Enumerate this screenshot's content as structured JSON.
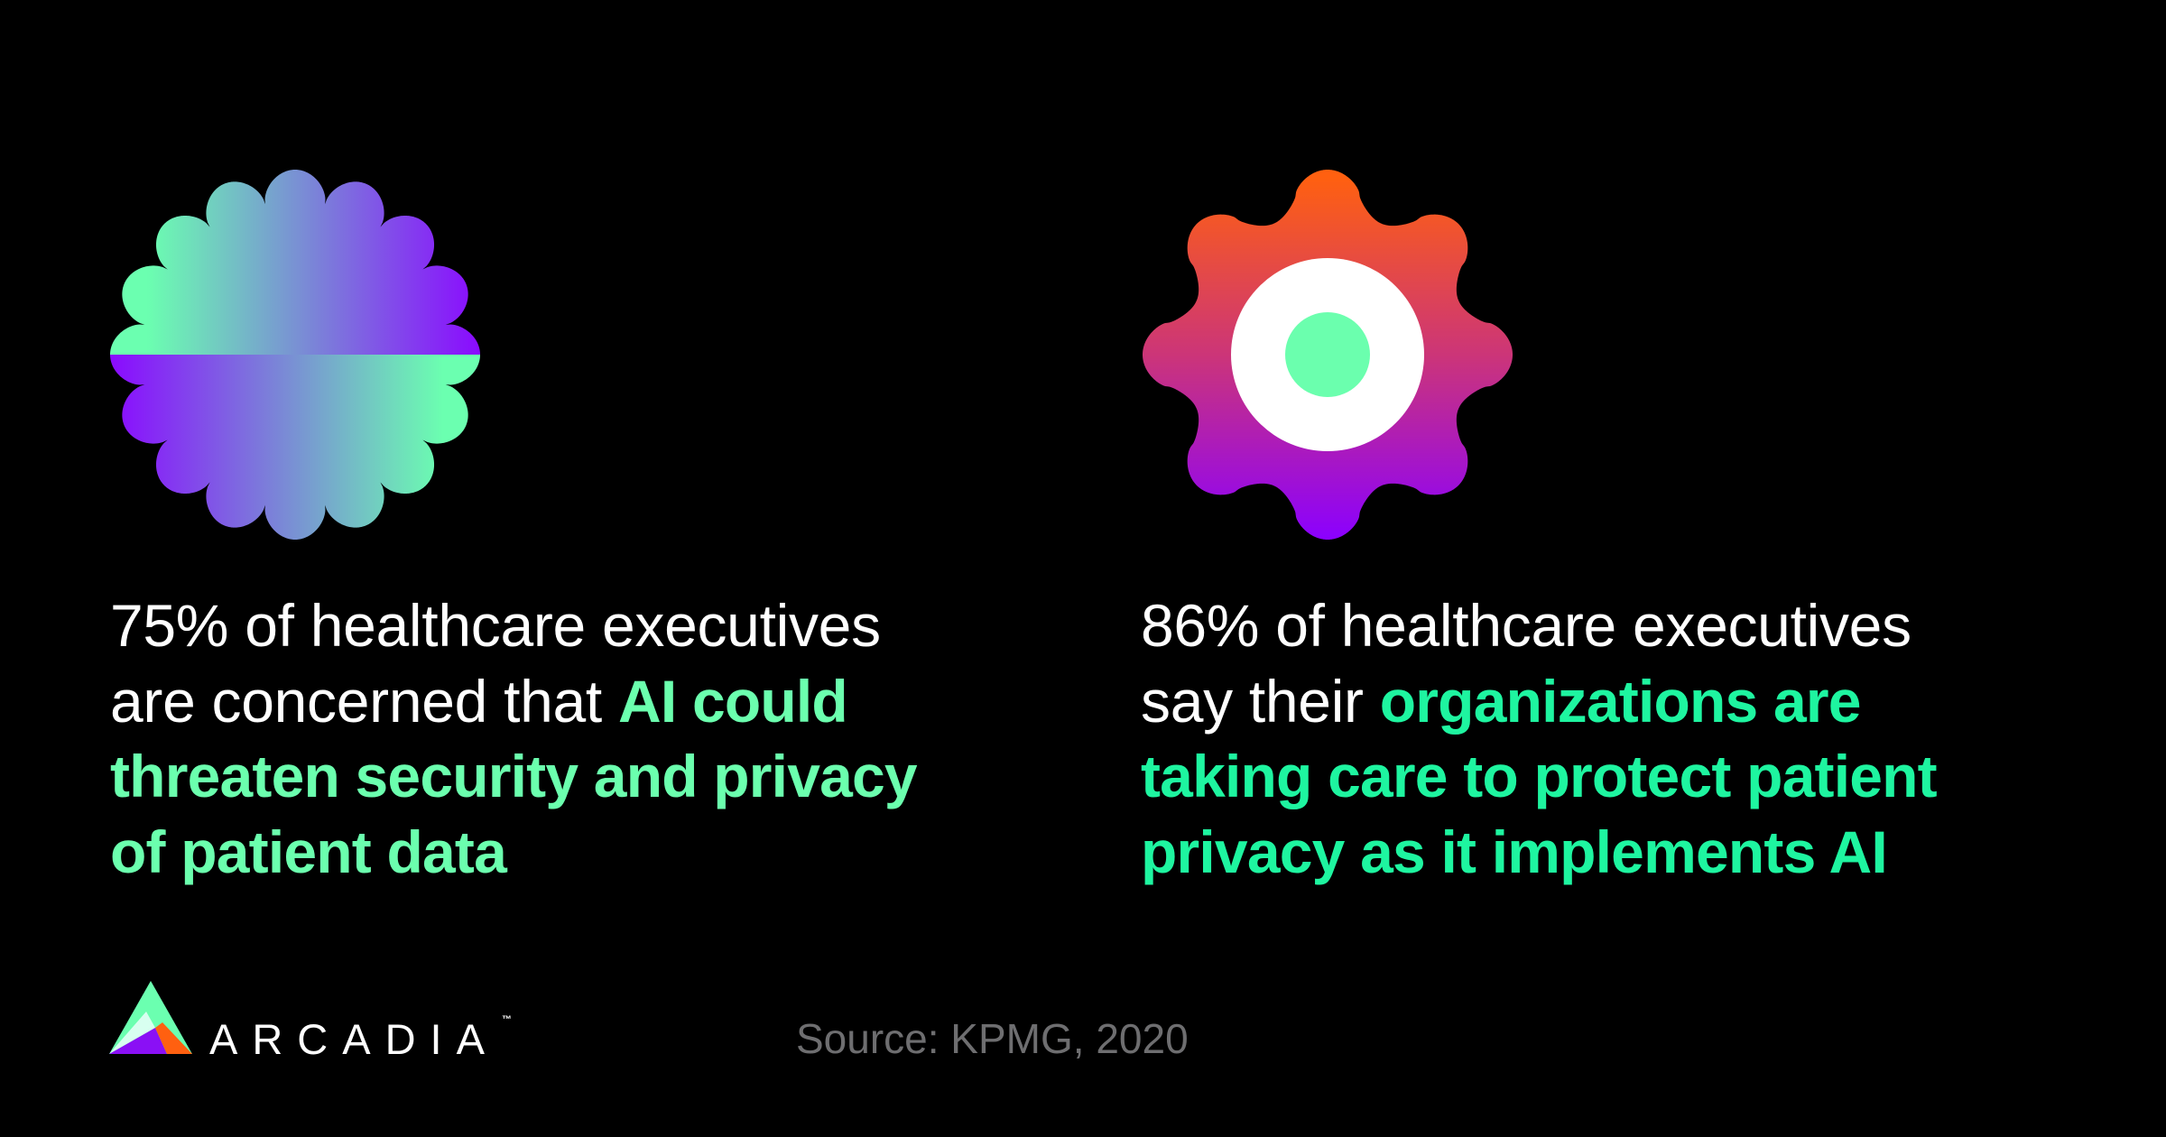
{
  "colors": {
    "background": "#000000",
    "accent_left": "#6BFFAE",
    "accent_right": "#1EF5A0",
    "text": "#FFFFFF",
    "source_text": "#6E6E70",
    "flower_gradient": [
      "#6BFFB0",
      "#8A0AFF"
    ],
    "gear_gradient": [
      "#FF6010",
      "#8B00FF"
    ],
    "gear_ring": "#FFFFFF",
    "gear_center": "#6BFFAE"
  },
  "icons": {
    "left": "flower-badge-icon",
    "right": "gear-icon",
    "logo": "arcadia-triangle-logo-icon"
  },
  "stats": {
    "left": {
      "percent": "75%",
      "lines": [
        [
          {
            "text": "75% of healthcare executives",
            "strong": false
          }
        ],
        [
          {
            "text": "are concerned that ",
            "strong": false
          },
          {
            "text": "AI could",
            "strong": true
          }
        ],
        [
          {
            "text": "threaten security and privacy",
            "strong": true
          }
        ],
        [
          {
            "text": "of patient data",
            "strong": true
          }
        ]
      ]
    },
    "right": {
      "percent": "86%",
      "lines": [
        [
          {
            "text": "86% of healthcare executives",
            "strong": false
          }
        ],
        [
          {
            "text": "say their ",
            "strong": false
          },
          {
            "text": "organizations are",
            "strong": true
          }
        ],
        [
          {
            "text": "taking care to protect patient",
            "strong": true
          }
        ],
        [
          {
            "text": "privacy as it implements AI",
            "strong": true
          }
        ]
      ]
    }
  },
  "footer": {
    "brand": "ARCADIA",
    "trademark": "™",
    "source": "Source: KPMG, 2020"
  }
}
